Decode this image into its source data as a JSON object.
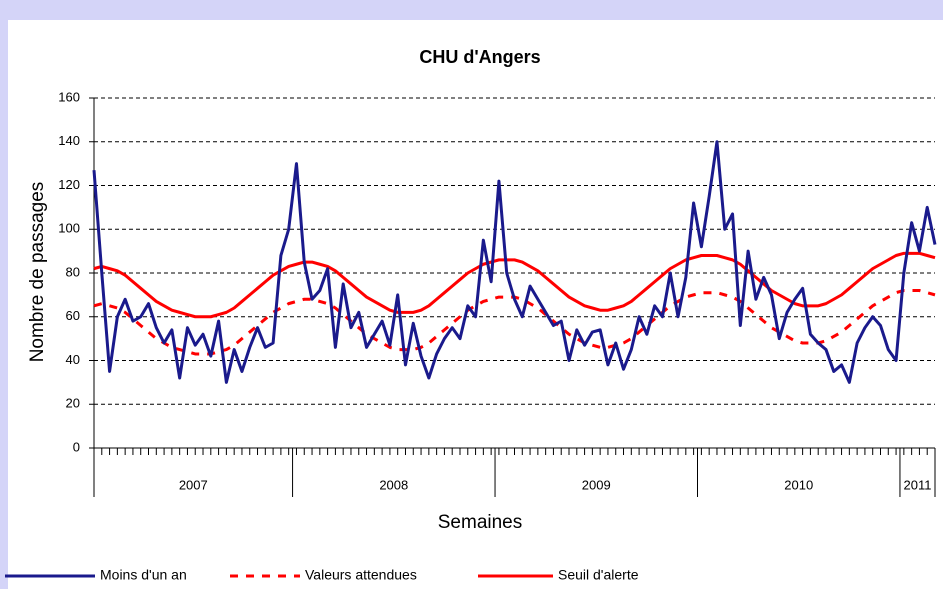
{
  "chart_data": {
    "type": "line",
    "title": "CHU d'Angers",
    "y_label": "Nombre de passages",
    "x_label": "Semaines",
    "ylim": [
      0,
      160
    ],
    "yticks": [
      0,
      20,
      40,
      60,
      80,
      100,
      120,
      140,
      160
    ],
    "grid": true,
    "legend": "bottom",
    "categories": [
      null,
      null,
      null,
      null,
      null,
      null,
      null,
      null,
      null,
      null,
      null,
      null,
      null,
      null,
      null,
      null,
      null,
      null,
      null,
      null,
      null,
      null,
      null,
      null,
      null,
      null,
      null,
      null,
      null,
      null,
      null,
      null,
      null,
      null,
      null,
      null,
      null,
      null,
      null,
      null,
      null,
      null,
      null,
      null,
      null,
      null,
      null,
      null,
      null,
      null,
      null,
      null,
      null,
      null,
      null,
      null,
      null,
      null,
      null,
      null,
      null,
      null,
      null,
      null,
      null,
      null,
      null,
      null,
      null,
      null,
      null,
      null,
      null,
      null,
      null,
      null,
      null,
      null,
      null,
      null,
      null,
      null,
      null,
      null,
      null,
      null,
      null,
      null,
      null,
      null,
      null,
      null,
      null,
      null,
      null,
      null,
      null,
      null,
      null,
      null,
      null,
      null,
      null,
      null,
      null,
      null,
      null,
      null,
      null
    ],
    "groups": [
      {
        "label": "2007",
        "count": 26
      },
      {
        "label": "2008",
        "count": 26
      },
      {
        "label": "2009",
        "count": 26
      },
      {
        "label": "2010",
        "count": 26
      },
      {
        "label": "2011",
        "count": 5
      }
    ],
    "series": [
      {
        "name": "Moins d'un an",
        "color": "#1a1a8c",
        "style": "solid",
        "values": [
          127,
          80,
          35,
          60,
          68,
          58,
          60,
          66,
          55,
          48,
          54,
          32,
          55,
          47,
          52,
          42,
          58,
          30,
          45,
          35,
          46,
          55,
          46,
          48,
          88,
          100,
          130,
          85,
          68,
          72,
          82,
          46,
          75,
          55,
          62,
          46,
          52,
          58,
          47,
          70,
          38,
          57,
          42,
          32,
          43,
          50,
          55,
          50,
          65,
          60,
          95,
          76,
          122,
          80,
          68,
          60,
          74,
          68,
          62,
          56,
          58,
          40,
          54,
          47,
          53,
          54,
          38,
          48,
          36,
          45,
          60,
          52,
          65,
          60,
          80,
          60,
          78,
          112,
          92,
          115,
          140,
          100,
          107,
          56,
          90,
          68,
          78,
          70,
          50,
          62,
          68,
          73,
          52,
          48,
          45,
          35,
          38,
          30,
          48,
          55,
          60,
          56,
          45,
          40,
          80,
          103,
          90,
          110,
          93
        ]
      },
      {
        "name": "Valeurs attendues",
        "color": "#ff0000",
        "style": "dashed",
        "values": [
          65,
          66,
          65,
          64,
          62,
          59,
          56,
          53,
          50,
          48,
          46,
          45,
          44,
          43,
          43,
          43,
          44,
          45,
          47,
          50,
          53,
          56,
          59,
          62,
          64,
          66,
          67,
          68,
          68,
          67,
          66,
          64,
          61,
          58,
          55,
          52,
          50,
          48,
          46,
          45,
          45,
          45,
          46,
          48,
          51,
          54,
          57,
          60,
          63,
          65,
          67,
          68,
          69,
          69,
          69,
          68,
          66,
          64,
          61,
          58,
          55,
          52,
          50,
          48,
          47,
          46,
          46,
          47,
          48,
          50,
          53,
          56,
          59,
          62,
          65,
          67,
          69,
          70,
          71,
          71,
          71,
          70,
          69,
          67,
          64,
          61,
          58,
          55,
          53,
          51,
          49,
          48,
          48,
          48,
          49,
          51,
          53,
          56,
          59,
          62,
          65,
          67,
          69,
          71,
          72,
          72,
          72,
          71,
          70
        ]
      },
      {
        "name": "Seuil d'alerte",
        "color": "#ff0000",
        "style": "solid",
        "values": [
          82,
          83,
          82,
          81,
          79,
          76,
          73,
          70,
          67,
          65,
          63,
          62,
          61,
          60,
          60,
          60,
          61,
          62,
          64,
          67,
          70,
          73,
          76,
          79,
          81,
          83,
          84,
          85,
          85,
          84,
          83,
          81,
          78,
          75,
          72,
          69,
          67,
          65,
          63,
          62,
          62,
          62,
          63,
          65,
          68,
          71,
          74,
          77,
          80,
          82,
          84,
          85,
          86,
          86,
          86,
          85,
          83,
          81,
          78,
          75,
          72,
          69,
          67,
          65,
          64,
          63,
          63,
          64,
          65,
          67,
          70,
          73,
          76,
          79,
          82,
          84,
          86,
          87,
          88,
          88,
          88,
          87,
          86,
          84,
          81,
          78,
          75,
          72,
          70,
          68,
          66,
          65,
          65,
          65,
          66,
          68,
          70,
          73,
          76,
          79,
          82,
          84,
          86,
          88,
          89,
          89,
          89,
          88,
          87
        ]
      }
    ]
  }
}
